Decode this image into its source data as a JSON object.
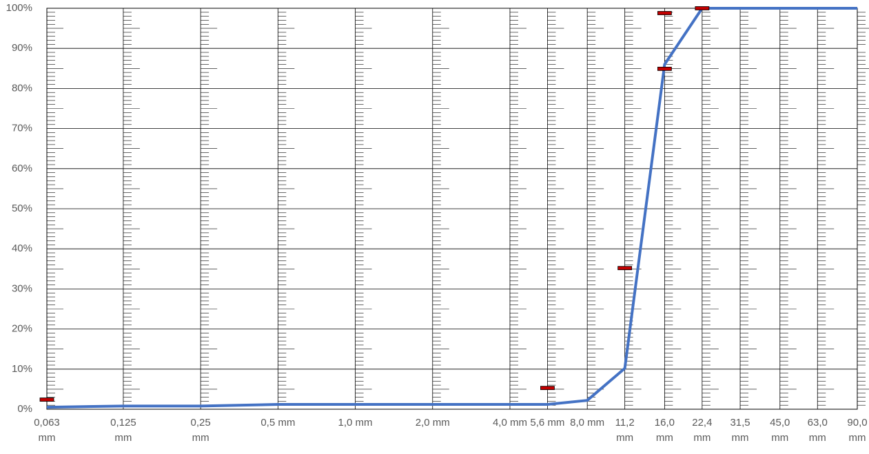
{
  "chart_data": {
    "type": "line",
    "x": [
      0.063,
      0.125,
      0.25,
      0.5,
      1.0,
      2.0,
      4.0,
      5.6,
      8.0,
      11.2,
      16.0,
      22.4,
      31.5,
      45.0,
      63.0,
      90.0
    ],
    "series": [
      {
        "color": "#4472c4",
        "values": [
          0.5,
          0.8,
          0.8,
          1.2,
          1.2,
          1.2,
          1.2,
          1.2,
          2.2,
          10.2,
          86,
          100,
          100,
          100,
          100,
          100
        ]
      }
    ],
    "markers": {
      "color": "#c00000",
      "x": [
        0.063,
        5.6,
        11.2,
        16.0,
        16.0,
        22.4
      ],
      "values": [
        2.4,
        5.3,
        35.2,
        84.9,
        98.8,
        100
      ]
    },
    "xscale": "log",
    "xlim": [
      0.063,
      90.0
    ],
    "xticks": [
      {
        "value": 0.063,
        "label": "0,063 mm"
      },
      {
        "value": 0.125,
        "label": "0,125 mm"
      },
      {
        "value": 0.25,
        "label": "0,25 mm"
      },
      {
        "value": 0.5,
        "label": "0,5 mm"
      },
      {
        "value": 1.0,
        "label": "1,0 mm"
      },
      {
        "value": 2.0,
        "label": "2,0 mm"
      },
      {
        "value": 4.0,
        "label": "4,0 mm"
      },
      {
        "value": 5.6,
        "label": "5,6 mm"
      },
      {
        "value": 8.0,
        "label": "8,0 mm"
      },
      {
        "value": 11.2,
        "label": "11,2 mm"
      },
      {
        "value": 16.0,
        "label": "16,0 mm"
      },
      {
        "value": 22.4,
        "label": "22,4 mm"
      },
      {
        "value": 31.5,
        "label": "31,5 mm"
      },
      {
        "value": 45.0,
        "label": "45,0 mm"
      },
      {
        "value": 63.0,
        "label": "63,0 mm"
      },
      {
        "value": 90.0,
        "label": "90,0 mm"
      }
    ],
    "ylim": [
      0,
      100
    ],
    "yticks": [
      {
        "value": 0,
        "label": "0%"
      },
      {
        "value": 10,
        "label": "10%"
      },
      {
        "value": 20,
        "label": "20%"
      },
      {
        "value": 30,
        "label": "30%"
      },
      {
        "value": 40,
        "label": "40%"
      },
      {
        "value": 50,
        "label": "50%"
      },
      {
        "value": 60,
        "label": "60%"
      },
      {
        "value": 70,
        "label": "70%"
      },
      {
        "value": 80,
        "label": "80%"
      },
      {
        "value": 90,
        "label": "90%"
      },
      {
        "value": 100,
        "label": "100%"
      }
    ],
    "grid": true
  }
}
